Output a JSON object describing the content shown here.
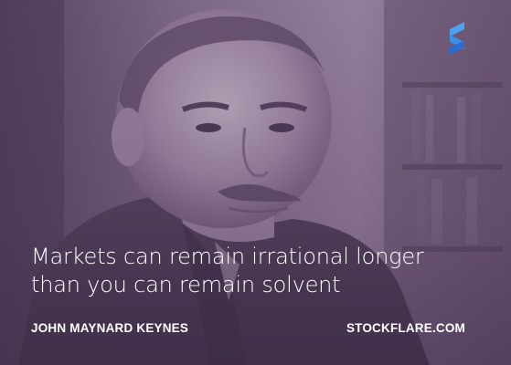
{
  "quote": {
    "lines": [
      "Markets can remain irrational longer",
      "than you can remain solvent"
    ]
  },
  "author": "JOHN MAYNARD KEYNES",
  "site": "STOCKFLARE.COM",
  "logo": {
    "icon": "stockflare-s-logo-icon",
    "colors": [
      "#3a8ee6",
      "#2b6fd1"
    ]
  },
  "photo": {
    "icon": "portrait-photo",
    "tint_color": "#7a6384"
  }
}
